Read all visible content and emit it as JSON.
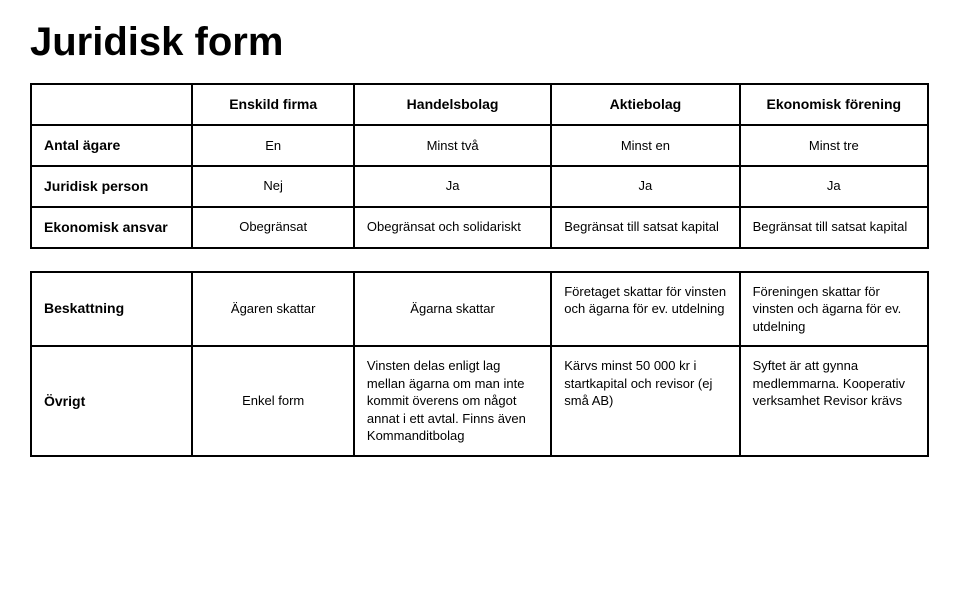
{
  "title": "Juridisk form",
  "colors": {
    "background": "#ffffff",
    "text": "#000000",
    "border": "#000000"
  },
  "typography": {
    "title_fontsize_pt": 30,
    "title_weight": 700,
    "header_fontsize_pt": 11,
    "header_weight": 700,
    "cell_fontsize_pt": 10,
    "font_family": "Verdana"
  },
  "table1": {
    "type": "table",
    "columns": [
      "",
      "Enskild firma",
      "Handelsbolag",
      "Aktiebolag",
      "Ekonomisk förening"
    ],
    "rows": [
      {
        "header": "Antal ägare",
        "cells": [
          "En",
          "Minst två",
          "Minst en",
          "Minst tre"
        ]
      },
      {
        "header": "Juridisk person",
        "cells": [
          "Nej",
          "Ja",
          "Ja",
          "Ja"
        ]
      },
      {
        "header": "Ekonomisk ansvar",
        "cells": [
          "Obegränsat",
          "Obegränsat och solidariskt",
          "Begränsat till satsat kapital",
          "Begränsat till satsat kapital"
        ]
      }
    ]
  },
  "table2": {
    "type": "table",
    "rows": [
      {
        "header": "Beskattning",
        "cells": [
          "Ägaren skattar",
          "Ägarna skattar",
          "Företaget skattar för vinsten och ägarna för ev. utdelning",
          "Föreningen skattar för vinsten och ägarna för ev. utdelning"
        ]
      },
      {
        "header": "Övrigt",
        "cells": [
          "Enkel form",
          "Vinsten delas enligt lag mellan ägarna om man inte kommit överens om något annat i ett avtal. Finns även Kommanditbolag",
          "Kärvs minst 50 000 kr i startkapital och revisor (ej små AB)",
          "Syftet är att gynna medlemmarna. Kooperativ verksamhet Revisor krävs"
        ]
      }
    ]
  }
}
